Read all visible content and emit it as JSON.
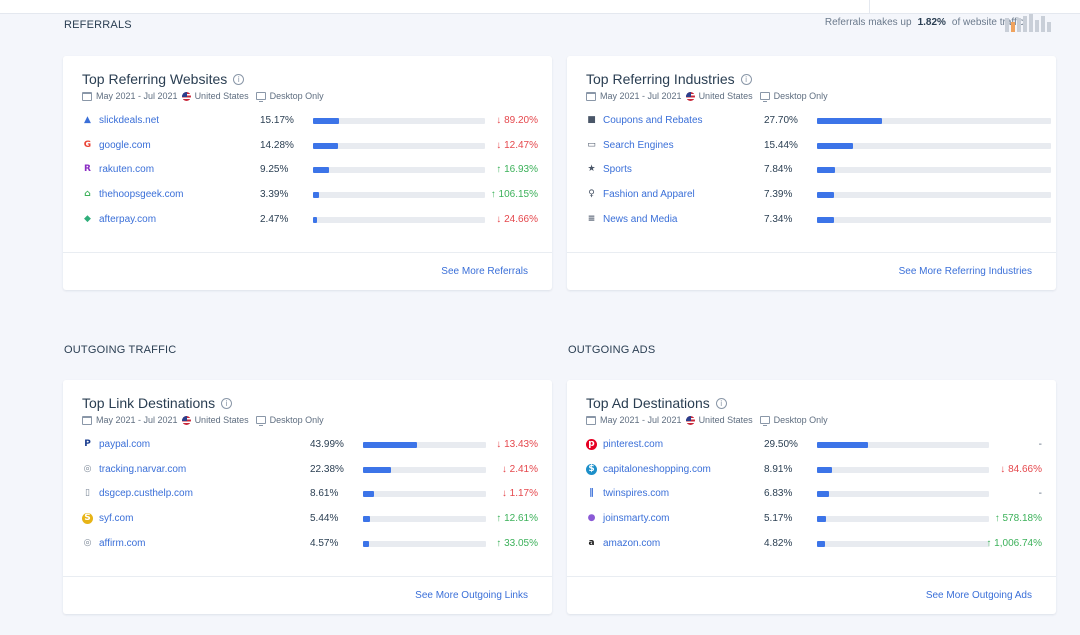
{
  "sections": {
    "referrals": "REFERRALS",
    "outgoing_traffic": "OUTGOING TRAFFIC",
    "outgoing_ads": "OUTGOING ADS"
  },
  "share": {
    "prefix": "Referrals makes up",
    "value": "1.82%",
    "suffix": "of website traffic"
  },
  "meta": {
    "date": "May 2021 - Jul 2021",
    "country": "United States",
    "device": "Desktop Only"
  },
  "colors": {
    "accent": "#3c74e8",
    "down": "#e5484d",
    "up": "#3cb15a"
  },
  "cards": {
    "websites": {
      "title": "Top Referring Websites",
      "more": "See More Referrals",
      "rows": [
        {
          "icon": "slickdeals-icon",
          "name": "slickdeals.net",
          "pct": "15.17%",
          "share": 15.17,
          "change": "89.20%",
          "dir": "down"
        },
        {
          "icon": "google-icon",
          "name": "google.com",
          "pct": "14.28%",
          "share": 14.28,
          "change": "12.47%",
          "dir": "down"
        },
        {
          "icon": "rakuten-icon",
          "name": "rakuten.com",
          "pct": "9.25%",
          "share": 9.25,
          "change": "16.93%",
          "dir": "up"
        },
        {
          "icon": "thehoopsgeek-icon",
          "name": "thehoopsgeek.com",
          "pct": "3.39%",
          "share": 3.39,
          "change": "106.15%",
          "dir": "up"
        },
        {
          "icon": "afterpay-icon",
          "name": "afterpay.com",
          "pct": "2.47%",
          "share": 2.47,
          "change": "24.66%",
          "dir": "down"
        }
      ]
    },
    "industries": {
      "title": "Top Referring Industries",
      "more": "See More Referring Industries",
      "rows": [
        {
          "icon": "cart-icon",
          "name": "Coupons and Rebates",
          "pct": "27.70%",
          "share": 27.7
        },
        {
          "icon": "laptop-icon",
          "name": "Search Engines",
          "pct": "15.44%",
          "share": 15.44
        },
        {
          "icon": "trophy-icon",
          "name": "Sports",
          "pct": "7.84%",
          "share": 7.84
        },
        {
          "icon": "person-icon",
          "name": "Fashion and Apparel",
          "pct": "7.39%",
          "share": 7.39
        },
        {
          "icon": "newspaper-icon",
          "name": "News and Media",
          "pct": "7.34%",
          "share": 7.34
        }
      ]
    },
    "links": {
      "title": "Top Link Destinations",
      "more": "See More Outgoing Links",
      "rows": [
        {
          "icon": "paypal-icon",
          "name": "paypal.com",
          "pct": "43.99%",
          "share": 43.99,
          "change": "13.43%",
          "dir": "down"
        },
        {
          "icon": "globe-icon",
          "name": "tracking.narvar.com",
          "pct": "22.38%",
          "share": 22.38,
          "change": "2.41%",
          "dir": "down"
        },
        {
          "icon": "document-icon",
          "name": "dsgcep.custhelp.com",
          "pct": "8.61%",
          "share": 8.61,
          "change": "1.17%",
          "dir": "down"
        },
        {
          "icon": "syf-icon",
          "name": "syf.com",
          "pct": "5.44%",
          "share": 5.44,
          "change": "12.61%",
          "dir": "up"
        },
        {
          "icon": "globe-icon",
          "name": "affirm.com",
          "pct": "4.57%",
          "share": 4.57,
          "change": "33.05%",
          "dir": "up"
        }
      ]
    },
    "ads": {
      "title": "Top Ad Destinations",
      "more": "See More Outgoing Ads",
      "rows": [
        {
          "icon": "pinterest-icon",
          "name": "pinterest.com",
          "pct": "29.50%",
          "share": 29.5,
          "change": "-",
          "dir": "flat"
        },
        {
          "icon": "capitalone-icon",
          "name": "capitaloneshopping.com",
          "pct": "8.91%",
          "share": 8.91,
          "change": "84.66%",
          "dir": "down"
        },
        {
          "icon": "twinspires-icon",
          "name": "twinspires.com",
          "pct": "6.83%",
          "share": 6.83,
          "change": "-",
          "dir": "flat"
        },
        {
          "icon": "joinsmarty-icon",
          "name": "joinsmarty.com",
          "pct": "5.17%",
          "share": 5.17,
          "change": "578.18%",
          "dir": "up"
        },
        {
          "icon": "amazon-icon",
          "name": "amazon.com",
          "pct": "4.82%",
          "share": 4.82,
          "change": "1,006.74%",
          "dir": "up"
        }
      ]
    }
  }
}
